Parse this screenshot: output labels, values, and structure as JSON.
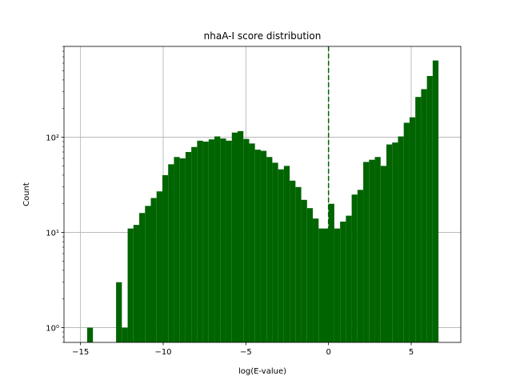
{
  "chart_data": {
    "type": "bar",
    "title": "nhaA-I score distribution",
    "xlabel": "log(E-value)",
    "ylabel": "Count",
    "xlim": [
      -16,
      8
    ],
    "ylim": [
      0.7,
      900
    ],
    "yscale": "log",
    "grid": true,
    "bar_color": "#006400",
    "x_ticks": [
      -15,
      -10,
      -5,
      0,
      5
    ],
    "x_tick_labels": [
      "−15",
      "−10",
      "−5",
      "0",
      "5"
    ],
    "y_ticks": [
      1,
      10,
      100
    ],
    "y_tick_labels": [
      "10⁰",
      "10¹",
      "10²"
    ],
    "threshold_line": {
      "x": 0,
      "color": "#006400",
      "style": "dashed"
    },
    "bin_width": 0.35,
    "bins": [
      {
        "x0": -14.6,
        "count": 1
      },
      {
        "x0": -12.85,
        "count": 3
      },
      {
        "x0": -12.5,
        "count": 1
      },
      {
        "x0": -12.15,
        "count": 11
      },
      {
        "x0": -11.8,
        "count": 12
      },
      {
        "x0": -11.45,
        "count": 16
      },
      {
        "x0": -11.1,
        "count": 19
      },
      {
        "x0": -10.75,
        "count": 23
      },
      {
        "x0": -10.4,
        "count": 27
      },
      {
        "x0": -10.05,
        "count": 40
      },
      {
        "x0": -9.7,
        "count": 52
      },
      {
        "x0": -9.35,
        "count": 62
      },
      {
        "x0": -9.0,
        "count": 60
      },
      {
        "x0": -8.65,
        "count": 70
      },
      {
        "x0": -8.3,
        "count": 79
      },
      {
        "x0": -7.95,
        "count": 92
      },
      {
        "x0": -7.6,
        "count": 90
      },
      {
        "x0": -7.25,
        "count": 95
      },
      {
        "x0": -6.9,
        "count": 102
      },
      {
        "x0": -6.55,
        "count": 97
      },
      {
        "x0": -6.2,
        "count": 92
      },
      {
        "x0": -5.85,
        "count": 112
      },
      {
        "x0": -5.5,
        "count": 116
      },
      {
        "x0": -5.15,
        "count": 96
      },
      {
        "x0": -4.8,
        "count": 86
      },
      {
        "x0": -4.45,
        "count": 74
      },
      {
        "x0": -4.1,
        "count": 72
      },
      {
        "x0": -3.75,
        "count": 62
      },
      {
        "x0": -3.4,
        "count": 54
      },
      {
        "x0": -3.05,
        "count": 46
      },
      {
        "x0": -2.7,
        "count": 50
      },
      {
        "x0": -2.35,
        "count": 35
      },
      {
        "x0": -2.0,
        "count": 30
      },
      {
        "x0": -1.65,
        "count": 22
      },
      {
        "x0": -1.3,
        "count": 18
      },
      {
        "x0": -0.95,
        "count": 14
      },
      {
        "x0": -0.6,
        "count": 11
      },
      {
        "x0": -0.25,
        "count": 11
      },
      {
        "x0": 0.0,
        "count": 20
      },
      {
        "x0": 0.35,
        "count": 11
      },
      {
        "x0": 0.7,
        "count": 13
      },
      {
        "x0": 1.05,
        "count": 15
      },
      {
        "x0": 1.4,
        "count": 25
      },
      {
        "x0": 1.75,
        "count": 28
      },
      {
        "x0": 2.1,
        "count": 55
      },
      {
        "x0": 2.45,
        "count": 58
      },
      {
        "x0": 2.8,
        "count": 62
      },
      {
        "x0": 3.15,
        "count": 50
      },
      {
        "x0": 3.5,
        "count": 84
      },
      {
        "x0": 3.85,
        "count": 88
      },
      {
        "x0": 4.2,
        "count": 102
      },
      {
        "x0": 4.55,
        "count": 142
      },
      {
        "x0": 4.9,
        "count": 162
      },
      {
        "x0": 5.25,
        "count": 265
      },
      {
        "x0": 5.6,
        "count": 320
      },
      {
        "x0": 5.95,
        "count": 440
      },
      {
        "x0": 6.3,
        "count": 640
      }
    ]
  }
}
